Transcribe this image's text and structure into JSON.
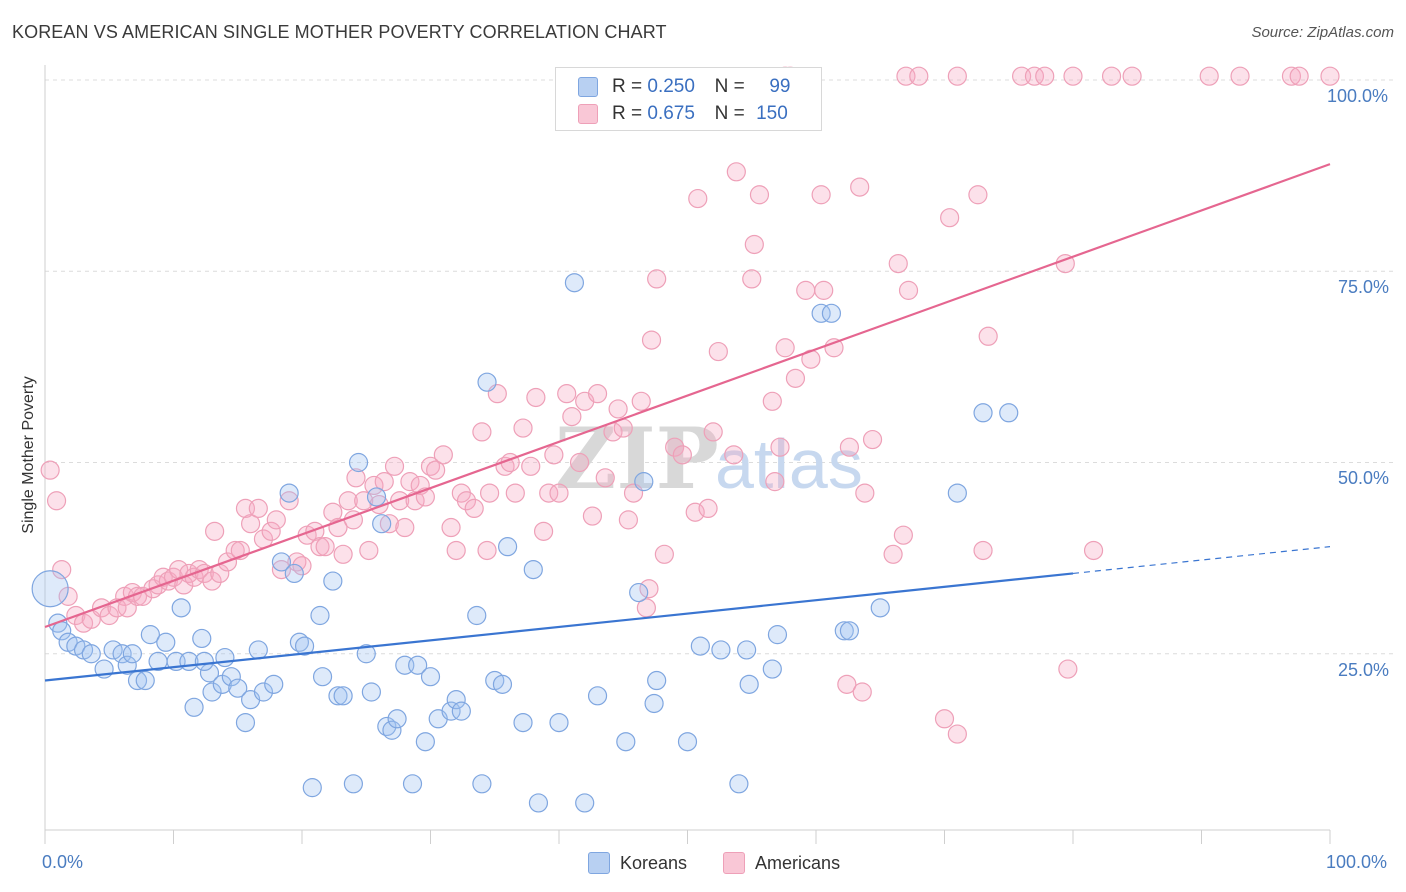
{
  "title": "KOREAN VS AMERICAN SINGLE MOTHER POVERTY CORRELATION CHART",
  "source": "Source: ZipAtlas.com",
  "watermark": "ZIPatlas",
  "legend_stats": [
    {
      "r_label": "R =",
      "r_value": "0.250",
      "n_label": "N =",
      "n_value": "99"
    },
    {
      "r_label": "R =",
      "r_value": "0.675",
      "n_label": "N =",
      "n_value": "150"
    }
  ],
  "chart_data": {
    "type": "scatter",
    "title": "KOREAN VS AMERICAN SINGLE MOTHER POVERTY CORRELATION CHART",
    "xlabel": "",
    "ylabel": "Single Mother Poverty",
    "xlim": [
      0,
      100
    ],
    "ylim": [
      0,
      102
    ],
    "x_tick_labels": [
      "0.0%",
      "100.0%"
    ],
    "y_tick_labels": [
      "25.0%",
      "50.0%",
      "75.0%",
      "100.0%"
    ],
    "y_ticks": [
      25,
      50,
      75,
      100
    ],
    "legend": [
      "Koreans",
      "Americans"
    ],
    "colors": {
      "Koreans": "#7fa6e0",
      "Americans": "#eea0b8",
      "korean_line": "#3a75d1",
      "american_line": "#e56690"
    },
    "series": [
      {
        "name": "Koreans",
        "trend": {
          "x0": 0,
          "y0": 21.5,
          "x1": 80,
          "y1": 35.5,
          "dashed_to_x": 100,
          "dashed_to_y": 39
        },
        "points": [
          [
            0.4,
            33.5
          ],
          [
            1.0,
            29
          ],
          [
            1.3,
            28
          ],
          [
            1.8,
            26.5
          ],
          [
            2.4,
            26
          ],
          [
            3.0,
            25.5
          ],
          [
            3.6,
            25
          ],
          [
            4.6,
            23
          ],
          [
            5.3,
            25.5
          ],
          [
            6.0,
            25
          ],
          [
            6.4,
            23.5
          ],
          [
            6.8,
            25
          ],
          [
            7.2,
            21.5
          ],
          [
            7.8,
            21.5
          ],
          [
            8.2,
            27.5
          ],
          [
            8.8,
            24
          ],
          [
            9.4,
            26.5
          ],
          [
            10.2,
            24
          ],
          [
            10.6,
            31
          ],
          [
            11.2,
            24
          ],
          [
            11.6,
            18
          ],
          [
            12.2,
            27
          ],
          [
            12.8,
            22.5
          ],
          [
            12.4,
            24
          ],
          [
            13.0,
            20
          ],
          [
            14.0,
            24.5
          ],
          [
            13.8,
            21
          ],
          [
            14.5,
            22
          ],
          [
            15.0,
            20.5
          ],
          [
            15.6,
            16
          ],
          [
            16.0,
            19
          ],
          [
            16.6,
            25.5
          ],
          [
            17.0,
            20
          ],
          [
            17.8,
            21
          ],
          [
            18.4,
            37
          ],
          [
            19.0,
            46
          ],
          [
            19.4,
            35.5
          ],
          [
            19.8,
            26.5
          ],
          [
            20.2,
            26
          ],
          [
            20.8,
            7.5
          ],
          [
            21.4,
            30
          ],
          [
            21.6,
            22
          ],
          [
            22.4,
            34.5
          ],
          [
            22.8,
            19.5
          ],
          [
            23.2,
            19.5
          ],
          [
            24.0,
            8
          ],
          [
            24.4,
            50
          ],
          [
            25.0,
            25
          ],
          [
            25.4,
            20
          ],
          [
            25.8,
            45.5
          ],
          [
            26.2,
            42
          ],
          [
            26.6,
            15.5
          ],
          [
            27.0,
            15
          ],
          [
            27.4,
            16.5
          ],
          [
            28.0,
            23.5
          ],
          [
            28.6,
            8
          ],
          [
            29.0,
            23.5
          ],
          [
            29.6,
            13.5
          ],
          [
            30.0,
            22
          ],
          [
            30.6,
            16.5
          ],
          [
            31.6,
            17.5
          ],
          [
            32.0,
            19
          ],
          [
            32.4,
            17.5
          ],
          [
            33.6,
            30
          ],
          [
            34.0,
            8
          ],
          [
            34.4,
            60.5
          ],
          [
            35.0,
            21.5
          ],
          [
            35.6,
            21
          ],
          [
            36.0,
            39
          ],
          [
            37.2,
            16
          ],
          [
            38.0,
            36
          ],
          [
            38.4,
            5.5
          ],
          [
            40.0,
            16
          ],
          [
            41.2,
            73.5
          ],
          [
            42.0,
            5.5
          ],
          [
            43.0,
            19.5
          ],
          [
            45.2,
            13.5
          ],
          [
            46.2,
            33
          ],
          [
            46.6,
            47.5
          ],
          [
            47.4,
            18.5
          ],
          [
            47.6,
            21.5
          ],
          [
            50.0,
            13.5
          ],
          [
            51.0,
            26
          ],
          [
            52.6,
            25.5
          ],
          [
            54.0,
            8
          ],
          [
            54.6,
            25.5
          ],
          [
            54.8,
            21
          ],
          [
            56.6,
            23
          ],
          [
            57.0,
            27.5
          ],
          [
            60.4,
            69.5
          ],
          [
            61.2,
            69.5
          ],
          [
            62.2,
            28
          ],
          [
            62.6,
            28
          ],
          [
            65.0,
            31
          ],
          [
            71.0,
            46
          ],
          [
            73.0,
            56.5
          ],
          [
            75.0,
            56.5
          ]
        ]
      },
      {
        "name": "Americans",
        "trend": {
          "x0": 0,
          "y0": 28.5,
          "x1": 100,
          "y1": 89
        },
        "points": [
          [
            0.4,
            49
          ],
          [
            0.9,
            45
          ],
          [
            1.3,
            36
          ],
          [
            1.8,
            32.5
          ],
          [
            2.4,
            30
          ],
          [
            3.0,
            29
          ],
          [
            3.6,
            29.5
          ],
          [
            4.4,
            31
          ],
          [
            5.0,
            30
          ],
          [
            5.6,
            31
          ],
          [
            6.2,
            32.5
          ],
          [
            6.4,
            31
          ],
          [
            6.8,
            33
          ],
          [
            7.2,
            32.5
          ],
          [
            7.6,
            32.5
          ],
          [
            8.4,
            33.5
          ],
          [
            8.8,
            34
          ],
          [
            9.2,
            35
          ],
          [
            9.6,
            34.5
          ],
          [
            10.0,
            35
          ],
          [
            10.4,
            36
          ],
          [
            10.8,
            34
          ],
          [
            11.2,
            35.5
          ],
          [
            11.6,
            35
          ],
          [
            12.0,
            36
          ],
          [
            12.4,
            35.5
          ],
          [
            13.0,
            34.5
          ],
          [
            13.2,
            41
          ],
          [
            13.6,
            35.5
          ],
          [
            14.2,
            37
          ],
          [
            14.8,
            38.5
          ],
          [
            15.2,
            38.5
          ],
          [
            15.6,
            44
          ],
          [
            16.0,
            42
          ],
          [
            16.6,
            44
          ],
          [
            17.0,
            40
          ],
          [
            17.6,
            41
          ],
          [
            18.0,
            42.5
          ],
          [
            18.4,
            36
          ],
          [
            19.0,
            45
          ],
          [
            19.6,
            37
          ],
          [
            20.0,
            36.5
          ],
          [
            20.4,
            40.5
          ],
          [
            21.0,
            41
          ],
          [
            21.4,
            39
          ],
          [
            21.8,
            39
          ],
          [
            22.4,
            43.5
          ],
          [
            22.8,
            41.5
          ],
          [
            23.2,
            38
          ],
          [
            23.6,
            45
          ],
          [
            24.0,
            42.5
          ],
          [
            24.2,
            48
          ],
          [
            24.8,
            45
          ],
          [
            25.2,
            38.5
          ],
          [
            25.6,
            47
          ],
          [
            26.0,
            44.5
          ],
          [
            26.4,
            47.5
          ],
          [
            26.8,
            42
          ],
          [
            27.2,
            49.5
          ],
          [
            27.6,
            45
          ],
          [
            28.0,
            41.5
          ],
          [
            28.4,
            47.5
          ],
          [
            28.8,
            45
          ],
          [
            29.2,
            47
          ],
          [
            29.6,
            45.5
          ],
          [
            30.0,
            49.5
          ],
          [
            30.4,
            49
          ],
          [
            31.0,
            51
          ],
          [
            31.6,
            41.5
          ],
          [
            32.0,
            38.5
          ],
          [
            32.4,
            46
          ],
          [
            32.8,
            45
          ],
          [
            33.4,
            44
          ],
          [
            34.0,
            54
          ],
          [
            34.4,
            38.5
          ],
          [
            34.6,
            46
          ],
          [
            35.2,
            59
          ],
          [
            35.8,
            49.5
          ],
          [
            36.2,
            50
          ],
          [
            36.6,
            46
          ],
          [
            37.2,
            54.5
          ],
          [
            37.8,
            49.5
          ],
          [
            38.2,
            58.5
          ],
          [
            38.8,
            41
          ],
          [
            39.2,
            46
          ],
          [
            39.6,
            51
          ],
          [
            40.0,
            46
          ],
          [
            40.6,
            59
          ],
          [
            41.0,
            56
          ],
          [
            41.6,
            50
          ],
          [
            42.0,
            58
          ],
          [
            42.6,
            43
          ],
          [
            43.0,
            59
          ],
          [
            43.6,
            48
          ],
          [
            44.2,
            54
          ],
          [
            44.6,
            57
          ],
          [
            45.0,
            54.5
          ],
          [
            45.4,
            42.5
          ],
          [
            45.8,
            46
          ],
          [
            46.4,
            58
          ],
          [
            46.8,
            31
          ],
          [
            47.0,
            33.5
          ],
          [
            47.2,
            66
          ],
          [
            47.6,
            74
          ],
          [
            48.2,
            38
          ],
          [
            49.0,
            52
          ],
          [
            49.6,
            51
          ],
          [
            50.6,
            43.5
          ],
          [
            50.8,
            84.5
          ],
          [
            51.6,
            44
          ],
          [
            52.0,
            54
          ],
          [
            52.4,
            64.5
          ],
          [
            53.6,
            51
          ],
          [
            53.8,
            88
          ],
          [
            55.0,
            74
          ],
          [
            55.2,
            78.5
          ],
          [
            55.6,
            85
          ],
          [
            56.6,
            58
          ],
          [
            56.8,
            47.5
          ],
          [
            57.2,
            52
          ],
          [
            57.6,
            65
          ],
          [
            58.4,
            61
          ],
          [
            59.2,
            72.5
          ],
          [
            59.6,
            63.5
          ],
          [
            60.4,
            85
          ],
          [
            60.6,
            72.5
          ],
          [
            61.4,
            65
          ],
          [
            62.6,
            52
          ],
          [
            62.4,
            21
          ],
          [
            63.4,
            86
          ],
          [
            63.6,
            20
          ],
          [
            63.8,
            46
          ],
          [
            64.4,
            53
          ],
          [
            66.0,
            38
          ],
          [
            66.4,
            76
          ],
          [
            66.8,
            40.5
          ],
          [
            67.2,
            72.5
          ],
          [
            70.0,
            16.5
          ],
          [
            70.4,
            82
          ],
          [
            71.0,
            14.5
          ],
          [
            72.6,
            85
          ],
          [
            73.0,
            38.5
          ],
          [
            73.4,
            66.5
          ],
          [
            79.4,
            76
          ],
          [
            79.6,
            23
          ],
          [
            81.6,
            38.5
          ],
          [
            67.0,
            100.5
          ],
          [
            68.0,
            100.5
          ],
          [
            71.0,
            100.5
          ],
          [
            76.0,
            100.5
          ],
          [
            77.0,
            100.5
          ],
          [
            77.8,
            100.5
          ],
          [
            80.0,
            100.5
          ],
          [
            83.0,
            100.5
          ],
          [
            84.6,
            100.5
          ],
          [
            90.6,
            100.5
          ],
          [
            93.0,
            100.5
          ],
          [
            97.0,
            100.5
          ],
          [
            97.6,
            100.5
          ],
          [
            100.0,
            100.5
          ],
          [
            58.0,
            100.5
          ],
          [
            57.6,
            100.5
          ]
        ]
      }
    ]
  }
}
